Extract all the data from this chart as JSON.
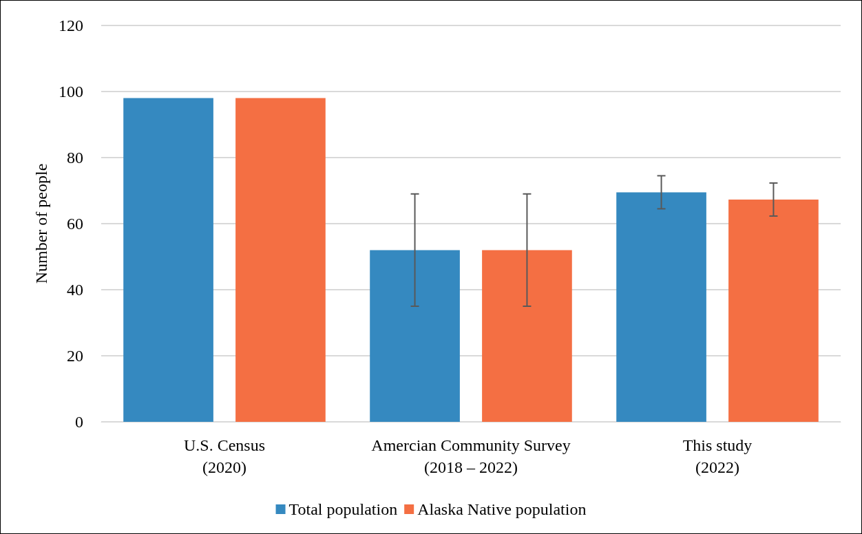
{
  "chart_data": {
    "type": "bar",
    "ylabel": "Number of people",
    "categories": [
      "U.S. Census\n(2020)",
      "Amercian Community Survey\n(2018 – 2022)",
      "This study\n(2022)"
    ],
    "series": [
      {
        "name": "Total population",
        "color": "#3589c0",
        "values": [
          98,
          52,
          69.5
        ],
        "errors": [
          null,
          17,
          5
        ]
      },
      {
        "name": "Alaska Native population",
        "color": "#f46f43",
        "values": [
          98,
          52,
          67.3
        ],
        "errors": [
          null,
          17,
          5
        ]
      }
    ],
    "ylim": [
      0,
      120
    ],
    "yticks": [
      0,
      20,
      40,
      60,
      80,
      100,
      120
    ],
    "grid": "y",
    "legend": "bottom"
  }
}
